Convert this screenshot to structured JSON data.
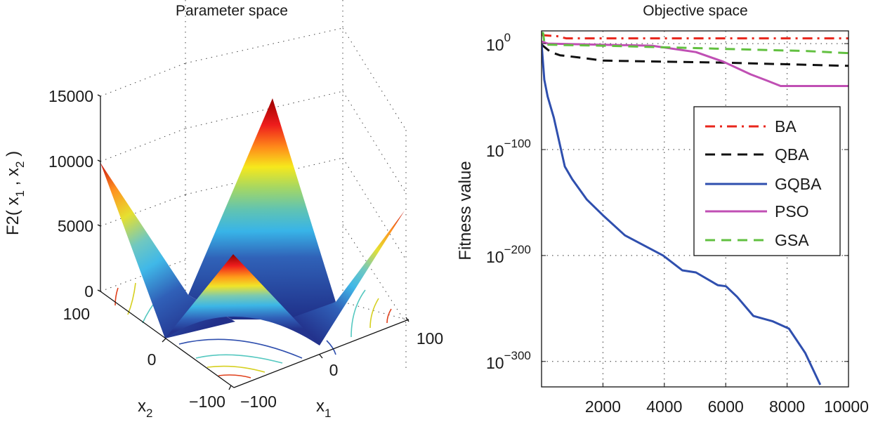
{
  "chart_data": [
    {
      "type": "surface",
      "title": "Parameter space",
      "xlabel": "x_1",
      "ylabel": "x_2",
      "zlabel": "F2( x_1 , x_2 )",
      "zlabel_parts": {
        "prefix": "F2( x",
        "sub1": "1",
        "mid": " , x",
        "sub2": "2",
        "suffix": " )"
      },
      "x_ticks": [
        "−100",
        "0",
        "100"
      ],
      "y_ticks": [
        "100",
        "0",
        "−100"
      ],
      "z_ticks": [
        "0",
        "5000",
        "10000",
        "15000"
      ],
      "xlim": [
        -100,
        100
      ],
      "ylim": [
        -100,
        100
      ],
      "zlim": [
        0,
        15000
      ],
      "colormap": "jet",
      "grid": true,
      "contours_on_base": true
    },
    {
      "type": "line",
      "title": "Objective space",
      "xlabel": "",
      "ylabel": "Fitness value",
      "yscale": "log",
      "xlim": [
        0,
        10000
      ],
      "ylim": [
        1e-323,
        1000000000000.0
      ],
      "x_ticks": [
        "2000",
        "4000",
        "6000",
        "8000",
        "10000"
      ],
      "y_ticks": [
        {
          "base": "10",
          "exp": "0",
          "value": 1
        },
        {
          "base": "10",
          "exp": "−100",
          "value": 1e-100
        },
        {
          "base": "10",
          "exp": "−200",
          "value": 1e-200
        },
        {
          "base": "10",
          "exp": "−300",
          "value": 1e-300
        }
      ],
      "grid": true,
      "legend_position": "right",
      "series": [
        {
          "name": "BA",
          "color": "#e8261c",
          "style": "dash-dot",
          "points": [
            [
              0,
              100000000.0
            ],
            [
              500,
              10000000.0
            ],
            [
              800,
              100000.0
            ],
            [
              10000,
              100000.0
            ]
          ]
        },
        {
          "name": "QBA",
          "color": "#111111",
          "style": "dashed",
          "points": [
            [
              0,
              0.1
            ],
            [
              300,
              1e-08
            ],
            [
              600,
              1e-11
            ],
            [
              1200,
              1e-13
            ],
            [
              2000,
              1e-16
            ],
            [
              4000,
              1e-17
            ],
            [
              6000,
              1e-18
            ],
            [
              10000,
              1e-21
            ]
          ]
        },
        {
          "name": "GQBA",
          "color": "#2f4fae",
          "style": "solid",
          "points": [
            [
              0,
              1
            ],
            [
              90,
              1e-34
            ],
            [
              200,
              1e-50
            ],
            [
              400,
              1e-70
            ],
            [
              757,
              1e-116
            ],
            [
              1000,
              1e-128
            ],
            [
              1470,
              1e-147
            ],
            [
              2000,
              1e-162
            ],
            [
              2716,
              1e-181
            ],
            [
              3960,
              1e-200
            ],
            [
              4585,
              1e-214
            ],
            [
              5030,
              1e-216
            ],
            [
              5740,
              1e-228
            ],
            [
              6010,
              1e-229
            ],
            [
              6370,
              1e-239
            ],
            [
              6900,
              1e-257
            ],
            [
              7520,
              1e-262
            ],
            [
              8060,
              1e-269
            ],
            [
              8590,
              1e-292
            ],
            [
              9080,
              1e-322
            ]
          ]
        },
        {
          "name": "PSO",
          "color": "#c04fb4",
          "style": "solid",
          "points": [
            [
              0,
              100.0
            ],
            [
              200,
              1.0
            ],
            [
              3600,
              0.01
            ],
            [
              5030,
              1e-08
            ],
            [
              5920,
              1e-17
            ],
            [
              6810,
              1e-29
            ],
            [
              7350,
              1e-35
            ],
            [
              7790,
              1e-40
            ],
            [
              10000,
              1e-40
            ]
          ]
        },
        {
          "name": "GSA",
          "color": "#62c040",
          "style": "dashed",
          "points": [
            [
              0,
              10000000000.0
            ],
            [
              50,
              10000000000.0
            ],
            [
              100,
              0.1
            ],
            [
              2000,
              0.01
            ],
            [
              4670,
              0.0001
            ],
            [
              6000,
              1e-05
            ],
            [
              8660,
              1e-07
            ],
            [
              10000,
              1e-09
            ]
          ]
        }
      ]
    }
  ]
}
